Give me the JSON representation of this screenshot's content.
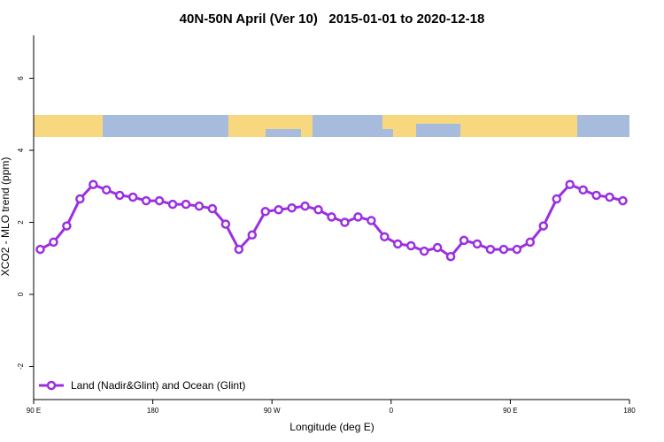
{
  "chart_data": {
    "type": "line",
    "title": "40N-50N April (Ver 10)   2015-01-01 to 2020-12-18",
    "x_label": "Longitude (deg E)",
    "y_label": "XCO2 - MLO trend (ppm)",
    "x": [
      95,
      105,
      115,
      125,
      135,
      145,
      155,
      165,
      175,
      185,
      195,
      205,
      215,
      225,
      235,
      245,
      255,
      265,
      275,
      285,
      295,
      305,
      315,
      325,
      335,
      345,
      355,
      365,
      375,
      385,
      395,
      405,
      415,
      425,
      435,
      445,
      455,
      465,
      475,
      485,
      495,
      505,
      515,
      525,
      535
    ],
    "series": [
      {
        "name": "Land (Nadir&Glint) and Ocean (Glint)",
        "color": "#9b2fe0",
        "values": [
          1.25,
          1.45,
          1.9,
          2.65,
          3.05,
          2.9,
          2.75,
          2.7,
          2.6,
          2.6,
          2.5,
          2.5,
          2.45,
          2.38,
          1.95,
          1.25,
          1.65,
          2.3,
          2.35,
          2.4,
          2.45,
          2.35,
          2.15,
          2.0,
          2.15,
          2.05,
          1.6,
          1.4,
          1.35,
          1.2,
          1.3,
          1.05,
          1.5,
          1.4,
          1.25,
          1.25,
          1.25,
          1.45,
          1.9,
          2.65,
          3.05,
          2.9,
          2.75,
          2.7,
          2.6
        ]
      }
    ],
    "xlim": [
      90,
      540
    ],
    "xticks": [
      {
        "value": 90,
        "label": "90 E"
      },
      {
        "value": 180,
        "label": "180"
      },
      {
        "value": 270,
        "label": "90 W"
      },
      {
        "value": 360,
        "label": "0"
      },
      {
        "value": 450,
        "label": "90 E"
      },
      {
        "value": 540,
        "label": "180"
      }
    ],
    "ylim": [
      -2.92,
      7.24
    ],
    "yticks": [
      -2,
      0,
      2,
      4,
      6
    ],
    "legend": "bottom-left"
  }
}
